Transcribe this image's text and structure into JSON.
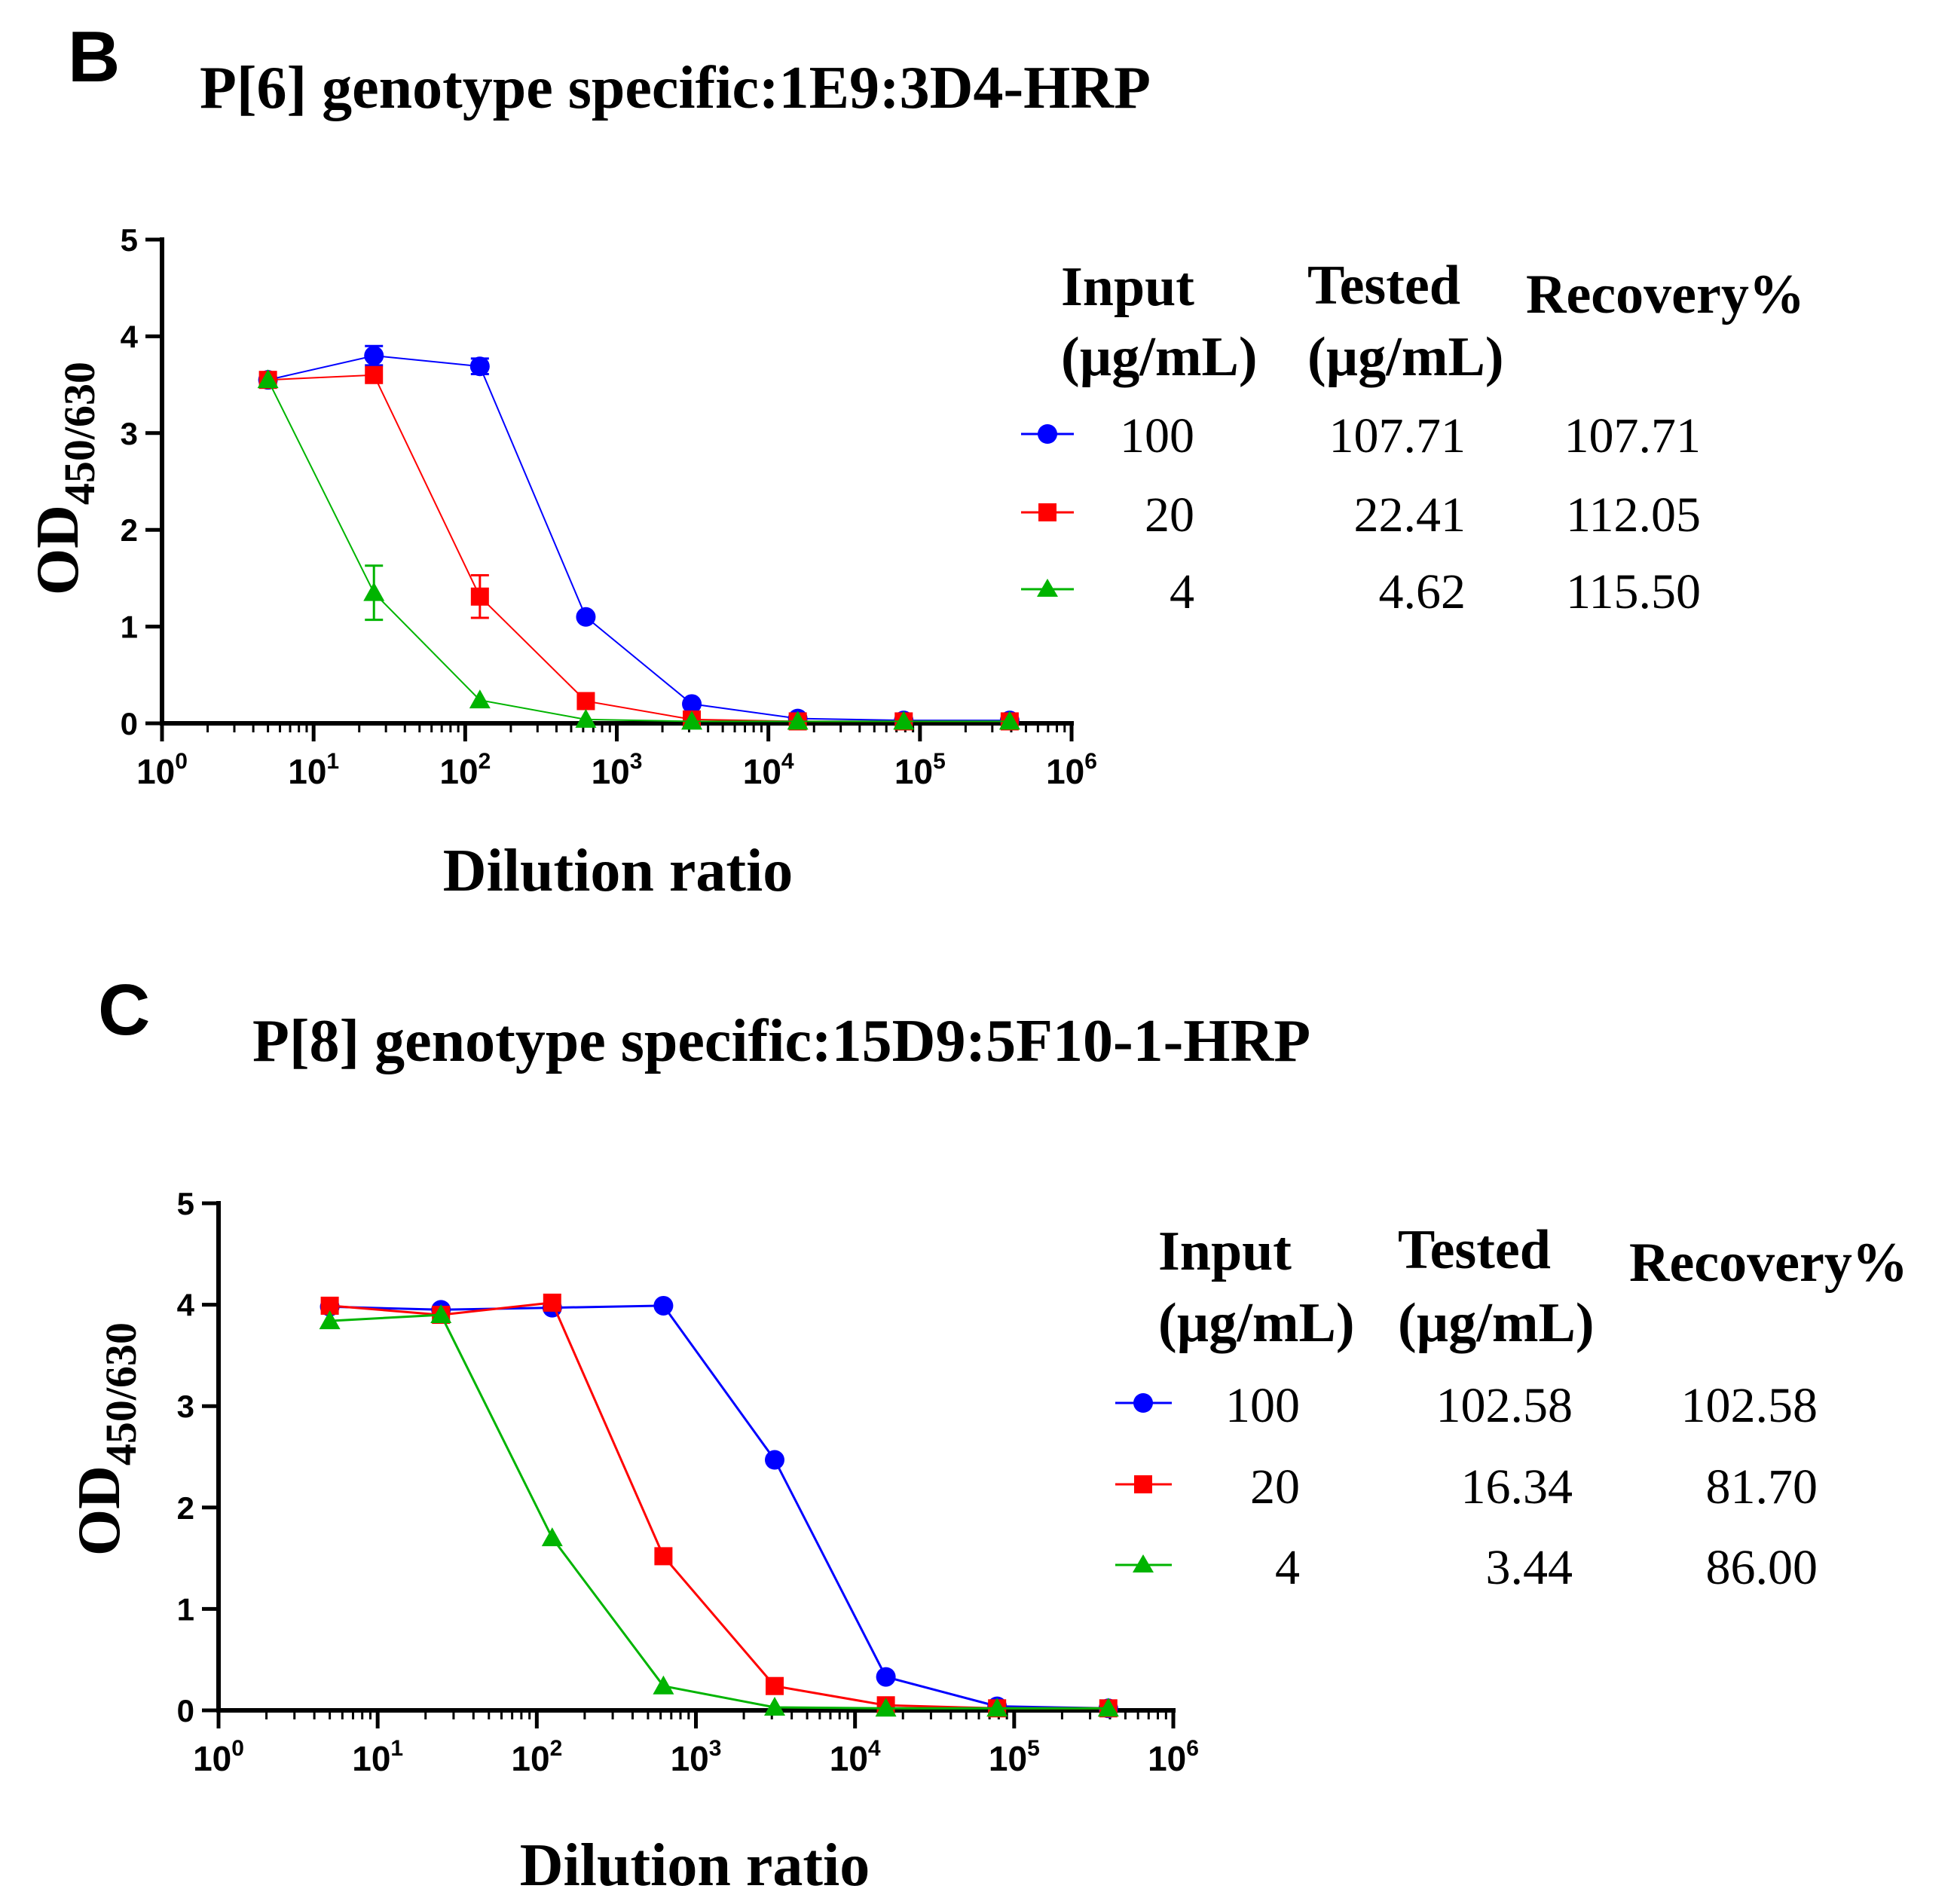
{
  "chart_data": [
    {
      "panel": "B",
      "type": "line",
      "title": "P[6] genotype specific:1E9:3D4-HRP",
      "xlabel": "Dilution ratio",
      "ylabel": {
        "main": "OD",
        "sub": "450/630"
      },
      "xscale": "log10",
      "xlim": [
        1,
        1000000
      ],
      "ylim": [
        0,
        5
      ],
      "yticks": [
        0,
        1,
        2,
        3,
        4,
        5
      ],
      "xticks": [
        {
          "base": "10",
          "exp": "0",
          "value": 1
        },
        {
          "base": "10",
          "exp": "1",
          "value": 10
        },
        {
          "base": "10",
          "exp": "2",
          "value": 100
        },
        {
          "base": "10",
          "exp": "3",
          "value": 1000
        },
        {
          "base": "10",
          "exp": "4",
          "value": 10000
        },
        {
          "base": "10",
          "exp": "5",
          "value": 100000
        },
        {
          "base": "10",
          "exp": "6",
          "value": 1000000
        }
      ],
      "x": [
        5,
        25,
        125,
        625,
        3125,
        15625,
        78125,
        390625
      ],
      "series": [
        {
          "name": "100",
          "marker": "circle",
          "color": "#0000ff",
          "stroke_width": 2,
          "values": [
            3.55,
            3.8,
            3.69,
            1.1,
            0.2,
            0.05,
            0.03,
            0.03
          ],
          "errors": [
            0,
            0.1,
            0.08,
            0,
            0,
            0,
            0,
            0
          ]
        },
        {
          "name": "20",
          "marker": "square",
          "color": "#ff0000",
          "stroke_width": 2,
          "values": [
            3.55,
            3.6,
            1.31,
            0.23,
            0.04,
            0.02,
            0.02,
            0.02
          ],
          "errors": [
            0,
            0,
            0.22,
            0,
            0,
            0,
            0,
            0
          ]
        },
        {
          "name": "4",
          "marker": "triangle",
          "color": "#00b400",
          "stroke_width": 2,
          "values": [
            3.55,
            1.35,
            0.24,
            0.04,
            0.02,
            0.02,
            0.02,
            0.02
          ],
          "errors": [
            0,
            0.28,
            0,
            0,
            0,
            0,
            0,
            0
          ]
        }
      ],
      "legend_table": {
        "headers": [
          {
            "line1": "Input",
            "line2": "(µg/mL)"
          },
          {
            "line1": "Tested",
            "line2": "(µg/mL)"
          },
          {
            "line1": "Recovery%",
            "line2": ""
          }
        ],
        "rows": [
          {
            "input": "100",
            "tested": "107.71",
            "recovery": "107.71"
          },
          {
            "input": "20",
            "tested": "22.41",
            "recovery": "112.05"
          },
          {
            "input": "4",
            "tested": "4.62",
            "recovery": "115.50"
          }
        ]
      }
    },
    {
      "panel": "C",
      "type": "line",
      "title": "P[8] genotype specific:15D9:5F10-1-HRP",
      "xlabel": "Dilution ratio",
      "ylabel": {
        "main": "OD",
        "sub": "450/630"
      },
      "xscale": "log10",
      "xlim": [
        1,
        1000000
      ],
      "ylim": [
        0,
        5
      ],
      "yticks": [
        0,
        1,
        2,
        3,
        4,
        5
      ],
      "xticks": [
        {
          "base": "10",
          "exp": "0",
          "value": 1
        },
        {
          "base": "10",
          "exp": "1",
          "value": 10
        },
        {
          "base": "10",
          "exp": "2",
          "value": 100
        },
        {
          "base": "10",
          "exp": "3",
          "value": 1000
        },
        {
          "base": "10",
          "exp": "4",
          "value": 10000
        },
        {
          "base": "10",
          "exp": "5",
          "value": 100000
        },
        {
          "base": "10",
          "exp": "6",
          "value": 1000000
        }
      ],
      "x": [
        5,
        25,
        125,
        625,
        3125,
        15625,
        78125,
        390625
      ],
      "series": [
        {
          "name": "100",
          "marker": "circle",
          "color": "#0000ff",
          "stroke_width": 3,
          "values": [
            3.98,
            3.95,
            3.97,
            3.99,
            2.47,
            0.33,
            0.04,
            0.02
          ],
          "errors": [
            0,
            0,
            0,
            0,
            0,
            0,
            0,
            0
          ]
        },
        {
          "name": "20",
          "marker": "square",
          "color": "#ff0000",
          "stroke_width": 3,
          "values": [
            3.99,
            3.9,
            4.02,
            1.52,
            0.24,
            0.05,
            0.02,
            0.02
          ],
          "errors": [
            0,
            0,
            0,
            0,
            0,
            0,
            0,
            0
          ]
        },
        {
          "name": "4",
          "marker": "triangle",
          "color": "#00b400",
          "stroke_width": 3,
          "values": [
            3.84,
            3.9,
            1.7,
            0.24,
            0.03,
            0.02,
            0.02,
            0.02
          ],
          "errors": [
            0,
            0,
            0,
            0,
            0,
            0,
            0,
            0
          ]
        }
      ],
      "legend_table": {
        "headers": [
          {
            "line1": "Input",
            "line2": "(µg/mL)"
          },
          {
            "line1": "Tested",
            "line2": "(µg/mL)"
          },
          {
            "line1": "Recovery%",
            "line2": ""
          }
        ],
        "rows": [
          {
            "input": "100",
            "tested": "102.58",
            "recovery": "102.58"
          },
          {
            "input": "20",
            "tested": "16.34",
            "recovery": "81.70"
          },
          {
            "input": "4",
            "tested": "3.44",
            "recovery": "86.00"
          }
        ]
      }
    }
  ]
}
